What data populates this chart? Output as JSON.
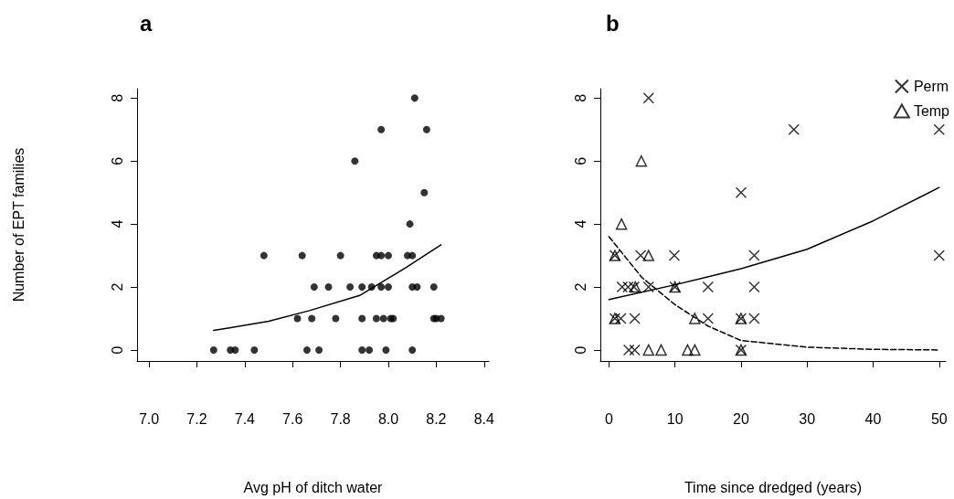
{
  "chart_data": [
    {
      "type": "scatter",
      "title": "a",
      "xlabel": "Avg pH of ditch water",
      "ylabel": "Number of EPT families",
      "xlim": [
        6.95,
        8.42
      ],
      "xticks": [
        {
          "value": 7,
          "label": "7.0"
        },
        7.2,
        7.4,
        7.6,
        7.8,
        {
          "value": 8,
          "label": "8.0"
        },
        8.2,
        8.4
      ],
      "ylim": [
        -0.35,
        8.3
      ],
      "yticks": [
        0,
        2,
        4,
        6,
        8
      ],
      "grid": false,
      "legend": false,
      "series": [
        {
          "color": "#000000",
          "marker": "circle",
          "x": [
            7.27,
            7.34,
            7.36,
            7.44,
            7.66,
            7.71,
            7.89,
            7.92,
            7.99,
            8.1,
            7.62,
            7.68,
            7.78,
            7.89,
            7.95,
            7.98,
            8.01,
            8.02,
            8.19,
            8.2,
            8.22,
            7.69,
            7.75,
            7.84,
            7.89,
            7.93,
            7.97,
            8.0,
            8.1,
            8.12,
            8.19,
            7.48,
            7.64,
            7.8,
            7.95,
            7.97,
            8.0,
            8.08,
            8.1,
            8.09,
            8.15,
            7.86,
            7.97,
            8.16,
            8.11
          ],
          "values": [
            0,
            0,
            0,
            0,
            0,
            0,
            0,
            0,
            0,
            0,
            1,
            1,
            1,
            1,
            1,
            1,
            1,
            1,
            1,
            1,
            1,
            2,
            2,
            2,
            2,
            2,
            2,
            2,
            2,
            2,
            2,
            3,
            3,
            3,
            3,
            3,
            3,
            3,
            3,
            4,
            5,
            6,
            7,
            7,
            8
          ]
        },
        {
          "type": "line",
          "color": "#000000",
          "marker": "none",
          "line_style": "solid",
          "x": [
            7.27,
            7.5,
            7.67,
            7.88,
            8.07,
            8.22
          ],
          "values": [
            0.62,
            0.91,
            1.25,
            1.73,
            2.6,
            3.34
          ]
        }
      ]
    },
    {
      "type": "scatter",
      "title": "b",
      "xlabel": "Time since dredged (years)",
      "xlim": [
        -1.3,
        51
      ],
      "xticks": [
        0,
        10,
        20,
        30,
        40,
        50
      ],
      "ylim": [
        -0.35,
        8.3
      ],
      "yticks": [
        0,
        2,
        4,
        6,
        8
      ],
      "grid": false,
      "legend": "top right",
      "series": [
        {
          "name": "Perm",
          "color": "#000000",
          "marker": "cross",
          "x": [
            6,
            28,
            50,
            20,
            0.9,
            4.8,
            9.9,
            22,
            50,
            2,
            2.9,
            3.8,
            6,
            10,
            15,
            22,
            0.9,
            1.8,
            3.9,
            15,
            20,
            22,
            3,
            3.9,
            20
          ],
          "values": [
            8,
            7,
            7,
            5,
            3,
            3,
            3,
            3,
            3,
            2,
            2,
            2,
            2,
            2,
            2,
            2,
            1,
            1,
            1,
            1,
            1,
            1,
            0,
            0,
            0
          ]
        },
        {
          "name": "Temp",
          "color": "#000000",
          "marker": "triangle",
          "x": [
            4.9,
            1.9,
            0.9,
            6,
            4,
            10,
            0.9,
            13,
            20,
            6,
            7.9,
            11.9,
            13,
            20
          ],
          "values": [
            6,
            4,
            3,
            3,
            2,
            2,
            1,
            1,
            1,
            0,
            0,
            0,
            0,
            0
          ]
        },
        {
          "type": "line",
          "color": "#000000",
          "marker": "none",
          "line_style": "solid",
          "x": [
            0,
            10,
            20,
            30,
            40,
            50
          ],
          "values": [
            1.6,
            2.07,
            2.58,
            3.2,
            4.1,
            5.16
          ]
        },
        {
          "type": "line",
          "color": "#000000",
          "marker": "none",
          "line_style": "dashed",
          "x": [
            0,
            5,
            10,
            15,
            20,
            30,
            40,
            50
          ],
          "values": [
            3.6,
            2.3,
            1.44,
            0.76,
            0.3,
            0.09,
            0.02,
            0
          ]
        }
      ]
    }
  ]
}
